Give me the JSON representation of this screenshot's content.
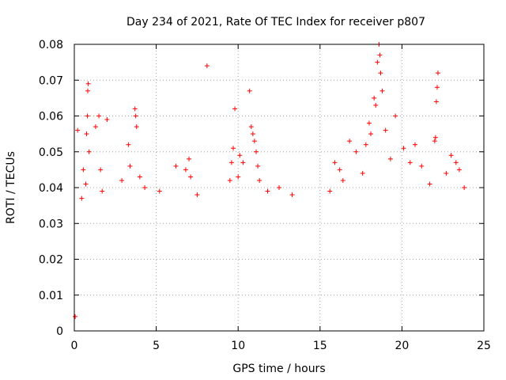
{
  "chart_data": {
    "type": "scatter",
    "title": "Day 234 of 2021, Rate Of TEC Index for receiver p807",
    "xlabel": "GPS time / hours",
    "ylabel": "ROTI / TECUs",
    "xlim": [
      0,
      25
    ],
    "ylim": [
      0,
      0.08
    ],
    "x_ticks": [
      "0",
      "5",
      "10",
      "15",
      "20",
      "25"
    ],
    "y_ticks": [
      "0",
      "0.01",
      "0.02",
      "0.03",
      "0.04",
      "0.05",
      "0.06",
      "0.07",
      "0.08"
    ],
    "grid": true,
    "marker": "+",
    "color": "#ff0000",
    "series": [
      {
        "values": [
          [
            0.05,
            0.004
          ],
          [
            0.2,
            0.056
          ],
          [
            0.45,
            0.037
          ],
          [
            0.55,
            0.045
          ],
          [
            0.7,
            0.041
          ],
          [
            0.75,
            0.055
          ],
          [
            0.8,
            0.06
          ],
          [
            0.82,
            0.067
          ],
          [
            0.85,
            0.069
          ],
          [
            0.9,
            0.05
          ],
          [
            1.3,
            0.057
          ],
          [
            1.5,
            0.06
          ],
          [
            1.6,
            0.045
          ],
          [
            1.7,
            0.039
          ],
          [
            2.0,
            0.059
          ],
          [
            2.9,
            0.042
          ],
          [
            3.3,
            0.052
          ],
          [
            3.4,
            0.046
          ],
          [
            3.7,
            0.062
          ],
          [
            3.75,
            0.06
          ],
          [
            3.8,
            0.057
          ],
          [
            4.0,
            0.043
          ],
          [
            4.3,
            0.04
          ],
          [
            5.2,
            0.039
          ],
          [
            6.2,
            0.046
          ],
          [
            6.8,
            0.045
          ],
          [
            7.0,
            0.048
          ],
          [
            7.1,
            0.043
          ],
          [
            7.5,
            0.038
          ],
          [
            8.1,
            0.074
          ],
          [
            9.5,
            0.042
          ],
          [
            9.6,
            0.047
          ],
          [
            9.7,
            0.051
          ],
          [
            9.8,
            0.062
          ],
          [
            10.0,
            0.043
          ],
          [
            10.1,
            0.049
          ],
          [
            10.3,
            0.047
          ],
          [
            10.7,
            0.067
          ],
          [
            10.8,
            0.057
          ],
          [
            10.9,
            0.055
          ],
          [
            11.0,
            0.053
          ],
          [
            11.1,
            0.05
          ],
          [
            11.2,
            0.046
          ],
          [
            11.3,
            0.042
          ],
          [
            11.8,
            0.039
          ],
          [
            12.5,
            0.04
          ],
          [
            13.3,
            0.038
          ],
          [
            15.6,
            0.039
          ],
          [
            15.9,
            0.047
          ],
          [
            16.2,
            0.045
          ],
          [
            16.4,
            0.042
          ],
          [
            16.8,
            0.053
          ],
          [
            17.2,
            0.05
          ],
          [
            17.6,
            0.044
          ],
          [
            17.8,
            0.052
          ],
          [
            18.0,
            0.058
          ],
          [
            18.1,
            0.055
          ],
          [
            18.3,
            0.065
          ],
          [
            18.4,
            0.063
          ],
          [
            18.5,
            0.075
          ],
          [
            18.6,
            0.08
          ],
          [
            18.65,
            0.077
          ],
          [
            18.7,
            0.072
          ],
          [
            18.8,
            0.067
          ],
          [
            19.0,
            0.056
          ],
          [
            19.3,
            0.048
          ],
          [
            19.6,
            0.06
          ],
          [
            20.1,
            0.051
          ],
          [
            20.5,
            0.047
          ],
          [
            20.8,
            0.052
          ],
          [
            21.2,
            0.046
          ],
          [
            21.7,
            0.041
          ],
          [
            22.0,
            0.053
          ],
          [
            22.05,
            0.054
          ],
          [
            22.1,
            0.064
          ],
          [
            22.15,
            0.068
          ],
          [
            22.2,
            0.072
          ],
          [
            22.7,
            0.044
          ],
          [
            23.0,
            0.049
          ],
          [
            23.3,
            0.047
          ],
          [
            23.5,
            0.045
          ],
          [
            23.8,
            0.04
          ]
        ]
      }
    ]
  }
}
